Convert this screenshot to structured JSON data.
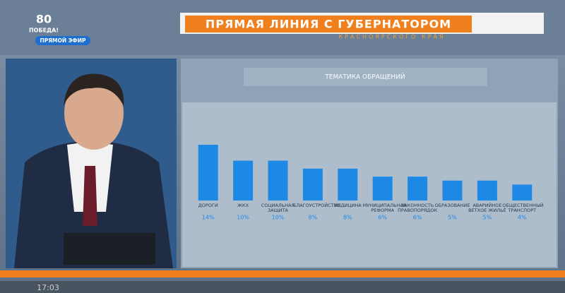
{
  "broadcast": {
    "logo_number": "80",
    "logo_text": "ПОБЕДА!",
    "live": "ПРЯМОЙ ЭФИР",
    "headline": "ПРЯМАЯ ЛИНИЯ С ГУБЕРНАТОРОМ",
    "subheadline": "КРАСНОЯРСКОГО КРАЯ",
    "time": "17:03"
  },
  "chart_data": {
    "type": "bar",
    "title": "ТЕМАТИКА ОБРАЩЕНИЙ",
    "categories": [
      "ДОРОГИ",
      "ЖКХ",
      "СОЦИАЛЬНАЯ ЗАЩИТА",
      "БЛАГОУСТРОЙСТВО",
      "МЕДИЦИНА",
      "МУНИЦИПАЛЬНАЯ РЕФОРМА",
      "ЗАКОННОСТЬ ПРАВОПОРЯДОК",
      "ОБРАЗОВАНИЕ",
      "АВАРИЙНОЕ ВЕТХОЕ ЖИЛЬЁ",
      "ОБЩЕСТВЕННЫЙ ТРАНСПОРТ"
    ],
    "values": [
      14,
      10,
      10,
      8,
      8,
      6,
      6,
      5,
      5,
      4
    ],
    "value_labels": [
      "14%",
      "10%",
      "10%",
      "8%",
      "8%",
      "6%",
      "6%",
      "5%",
      "5%",
      "4%"
    ],
    "color": "#1e88e5"
  }
}
